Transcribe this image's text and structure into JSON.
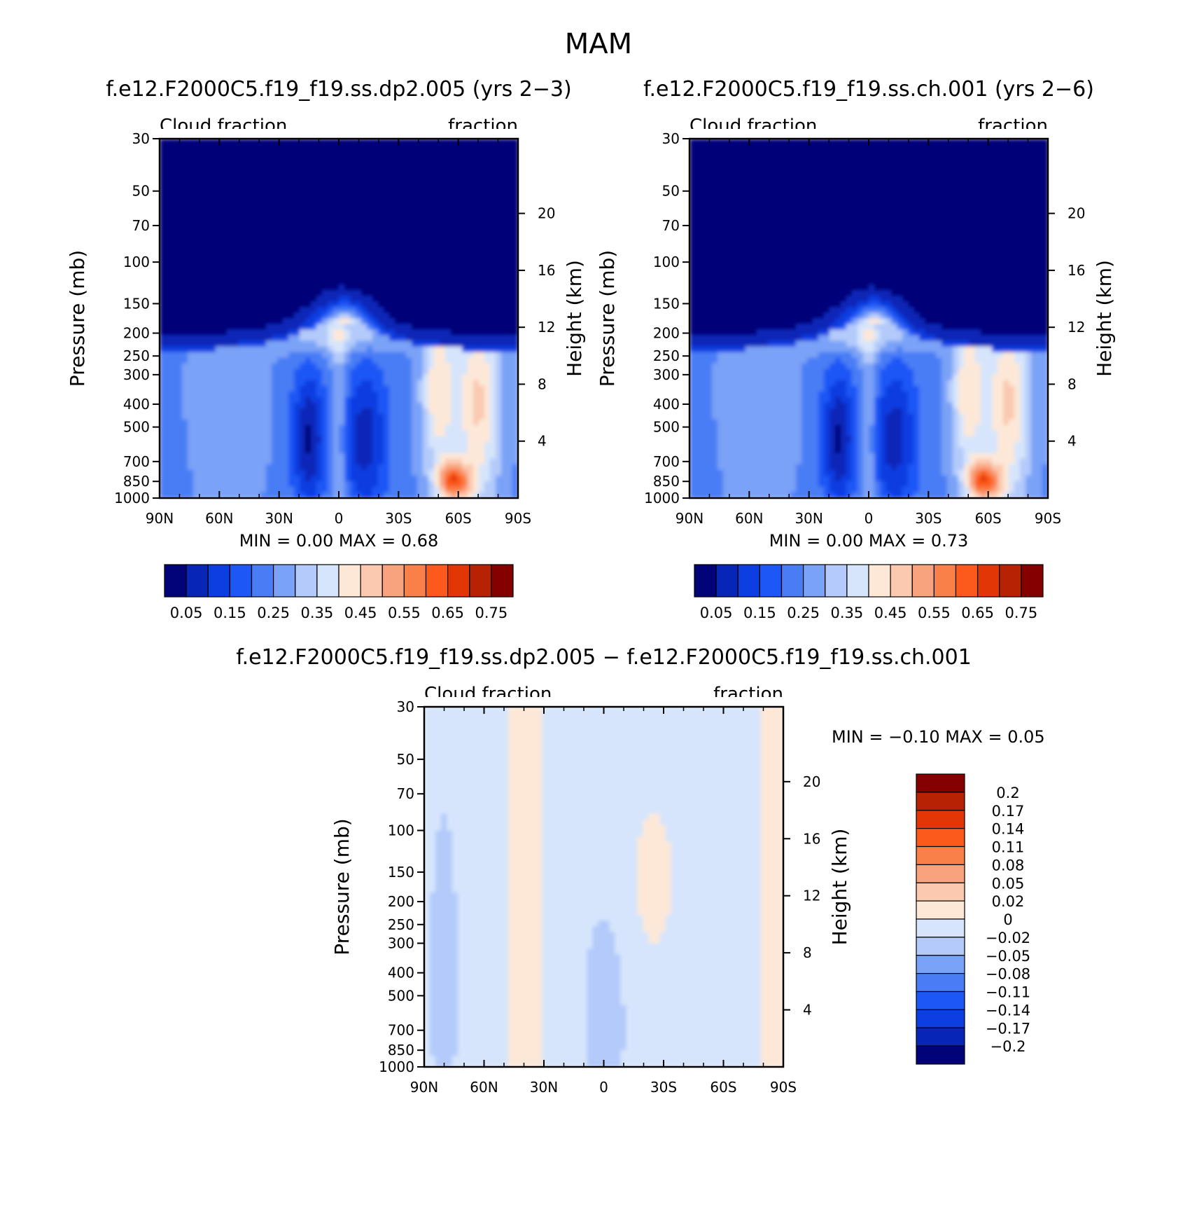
{
  "page_title": "MAM",
  "chart_data": [
    {
      "type": "heatmap",
      "title": "f.e12.F2000C5.f19_f19.ss.dp2.005 (yrs 2-3)",
      "left_label": "Cloud fraction",
      "right_label": "fraction",
      "ylabel": "Pressure (mb)",
      "ylabel_right": "Height (km)",
      "x_ticks": [
        "90N",
        "60N",
        "30N",
        "0",
        "30S",
        "60S",
        "90S"
      ],
      "xlim": [
        90,
        -90
      ],
      "y_ticks": [
        30,
        50,
        70,
        100,
        150,
        200,
        250,
        300,
        400,
        500,
        700,
        850,
        1000
      ],
      "y_scale": "log",
      "ylim": [
        1000,
        30
      ],
      "y_ticks_right": [
        20,
        16,
        12,
        8,
        4
      ],
      "stats": "MIN =     0.00   MAX =     0.68",
      "min": 0.0,
      "max": 0.68,
      "colorbar": {
        "orientation": "horizontal",
        "labels": [
          "0.05",
          "0.15",
          "0.25",
          "0.35",
          "0.45",
          "0.55",
          "0.65",
          "0.75"
        ],
        "colors": [
          "#020378",
          "#0726b8",
          "#0c3ee1",
          "#1d57f6",
          "#4a7df5",
          "#7aa2f7",
          "#b3cafa",
          "#d6e5fb",
          "#fde8d8",
          "#fbc9b0",
          "#f9a37e",
          "#f98049",
          "#fc5a1d",
          "#e33606",
          "#b72205",
          "#840100"
        ]
      },
      "pattern": "base",
      "max_value_hint": 0.68
    },
    {
      "type": "heatmap",
      "title": "f.e12.F2000C5.f19_f19.ss.ch.001 (yrs 2-6)",
      "left_label": "Cloud fraction",
      "right_label": "fraction",
      "ylabel": "Pressure (mb)",
      "ylabel_right": "Height (km)",
      "x_ticks": [
        "90N",
        "60N",
        "30N",
        "0",
        "30S",
        "60S",
        "90S"
      ],
      "xlim": [
        90,
        -90
      ],
      "y_ticks": [
        30,
        50,
        70,
        100,
        150,
        200,
        250,
        300,
        400,
        500,
        700,
        850,
        1000
      ],
      "y_scale": "log",
      "ylim": [
        1000,
        30
      ],
      "y_ticks_right": [
        20,
        16,
        12,
        8,
        4
      ],
      "stats": "MIN =     0.00   MAX =     0.73",
      "min": 0.0,
      "max": 0.73,
      "colorbar": {
        "orientation": "horizontal",
        "labels": [
          "0.05",
          "0.15",
          "0.25",
          "0.35",
          "0.45",
          "0.55",
          "0.65",
          "0.75"
        ],
        "colors": [
          "#020378",
          "#0726b8",
          "#0c3ee1",
          "#1d57f6",
          "#4a7df5",
          "#7aa2f7",
          "#b3cafa",
          "#d6e5fb",
          "#fde8d8",
          "#fbc9b0",
          "#f9a37e",
          "#f98049",
          "#fc5a1d",
          "#e33606",
          "#b72205",
          "#840100"
        ]
      },
      "pattern": "base",
      "max_value_hint": 0.73
    },
    {
      "type": "heatmap",
      "title": "f.e12.F2000C5.f19_f19.ss.dp2.005 - f.e12.F2000C5.f19_f19.ss.ch.001",
      "left_label": "Cloud fraction",
      "right_label": "fraction",
      "ylabel": "Pressure (mb)",
      "ylabel_right": "Height (km)",
      "x_ticks": [
        "90N",
        "60N",
        "30N",
        "0",
        "30S",
        "60S",
        "90S"
      ],
      "xlim": [
        90,
        -90
      ],
      "y_ticks": [
        30,
        50,
        70,
        100,
        150,
        200,
        250,
        300,
        400,
        500,
        700,
        850,
        1000
      ],
      "y_scale": "log",
      "ylim": [
        1000,
        30
      ],
      "y_ticks_right": [
        20,
        16,
        12,
        8,
        4
      ],
      "stats": "MIN =    -0.10   MAX =     0.05",
      "min": -0.1,
      "max": 0.05,
      "colorbar": {
        "orientation": "vertical",
        "labels": [
          "0.2",
          "0.17",
          "0.14",
          "0.11",
          "0.08",
          "0.05",
          "0.02",
          "0",
          "-0.02",
          "-0.05",
          "-0.08",
          "-0.11",
          "-0.14",
          "-0.17",
          "-0.2"
        ],
        "colors": [
          "#840100",
          "#b72205",
          "#e33606",
          "#fc5a1d",
          "#f98049",
          "#f9a37e",
          "#fbc9b0",
          "#fde8d8",
          "#d6e5fb",
          "#b3cafa",
          "#7aa2f7",
          "#4a7df5",
          "#1d57f6",
          "#0c3ee1",
          "#0726b8",
          "#020378"
        ]
      },
      "pattern": "diff"
    }
  ]
}
